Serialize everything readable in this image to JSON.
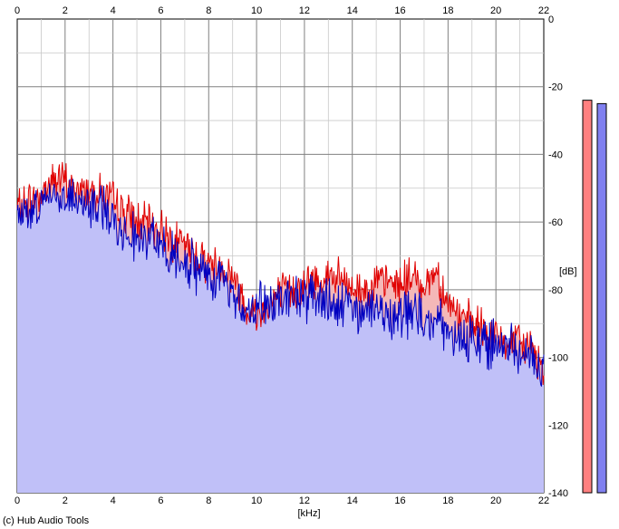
{
  "footer": "(c) Hub Audio Tools",
  "chart_data": {
    "type": "area",
    "xlabel": "[kHz]",
    "ylabel": "[dB]",
    "xlim": [
      0,
      22
    ],
    "ylim": [
      -140,
      0
    ],
    "xticks": [
      "0",
      "2",
      "4",
      "6",
      "8",
      "10",
      "12",
      "14",
      "16",
      "18",
      "20",
      "22"
    ],
    "yticks": [
      "0",
      "-20",
      "-40",
      "-60",
      "-80",
      "-100",
      "-120",
      "-140"
    ],
    "grid": true,
    "colors": {
      "series_red": "#e00000",
      "series_blue": "#0000c0",
      "fill_red": "#f4b8b8",
      "fill_blue": "#c0c0f8",
      "meter_red": "#ff8080",
      "meter_blue": "#8080f0",
      "major_grid": "#808080",
      "minor_grid": "#c8c8c8"
    },
    "series": [
      {
        "x": [
          0,
          0.5,
          1,
          1.5,
          2,
          2.5,
          3,
          3.5,
          4,
          4.5,
          5,
          5.5,
          6,
          6.5,
          7,
          7.5,
          8,
          8.5,
          9,
          9.5,
          10,
          10.5,
          11,
          11.5,
          12,
          12.5,
          13,
          13.5,
          14,
          14.5,
          15,
          15.5,
          16,
          16.5,
          17,
          17.5,
          18,
          18.5,
          19,
          19.5,
          20,
          20.5,
          21,
          21.5,
          22
        ],
        "values": [
          -56,
          -54,
          -52,
          -47,
          -48,
          -51,
          -50,
          -51,
          -54,
          -57,
          -60,
          -61,
          -62,
          -65,
          -67,
          -70,
          -72,
          -73,
          -76,
          -84,
          -87,
          -84,
          -81,
          -80,
          -79,
          -77,
          -76,
          -77,
          -80,
          -80,
          -78,
          -78,
          -78,
          -76,
          -79,
          -74,
          -84,
          -88,
          -90,
          -92,
          -94,
          -96,
          -96,
          -97,
          -104
        ]
      },
      {
        "x": [
          0,
          0.5,
          1,
          1.5,
          2,
          2.5,
          3,
          3.5,
          4,
          4.5,
          5,
          5.5,
          6,
          6.5,
          7,
          7.5,
          8,
          8.5,
          9,
          9.5,
          10,
          10.5,
          11,
          11.5,
          12,
          12.5,
          13,
          13.5,
          14,
          14.5,
          15,
          15.5,
          16,
          16.5,
          17,
          17.5,
          18,
          18.5,
          19,
          19.5,
          20,
          20.5,
          21,
          21.5,
          22
        ],
        "values": [
          -58,
          -56,
          -55,
          -51,
          -52,
          -54,
          -55,
          -56,
          -59,
          -62,
          -64,
          -66,
          -67,
          -69,
          -72,
          -74,
          -75,
          -78,
          -80,
          -86,
          -85,
          -84,
          -83,
          -82,
          -83,
          -83,
          -84,
          -85,
          -86,
          -86,
          -86,
          -87,
          -87,
          -86,
          -88,
          -89,
          -92,
          -94,
          -95,
          -96,
          -96,
          -97,
          -98,
          -98,
          -106
        ]
      }
    ],
    "meters": [
      {
        "value": -24
      },
      {
        "value": -25
      }
    ]
  }
}
